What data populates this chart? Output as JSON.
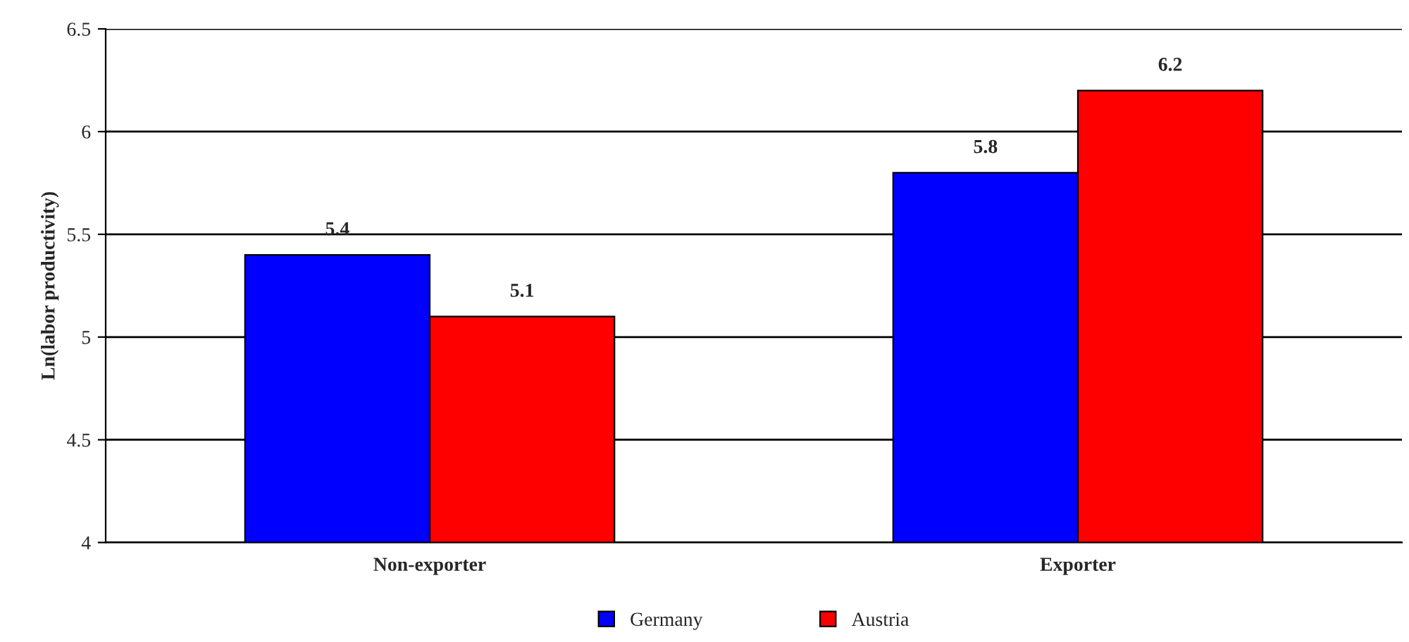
{
  "chart_data": {
    "type": "bar",
    "ylabel": "Ln(labor productivity)",
    "categories": [
      "Non-exporter",
      "Exporter"
    ],
    "series": [
      {
        "name": "Germany",
        "color": "#0000ff",
        "values": [
          5.4,
          5.8
        ]
      },
      {
        "name": "Austria",
        "color": "#ff0000",
        "values": [
          5.1,
          6.2
        ]
      }
    ],
    "ylim": [
      4,
      6.5
    ],
    "yticks": [
      4,
      4.5,
      5,
      5.5,
      6,
      6.5
    ],
    "grid": "y",
    "legend": "bottom",
    "data_labels": true
  }
}
